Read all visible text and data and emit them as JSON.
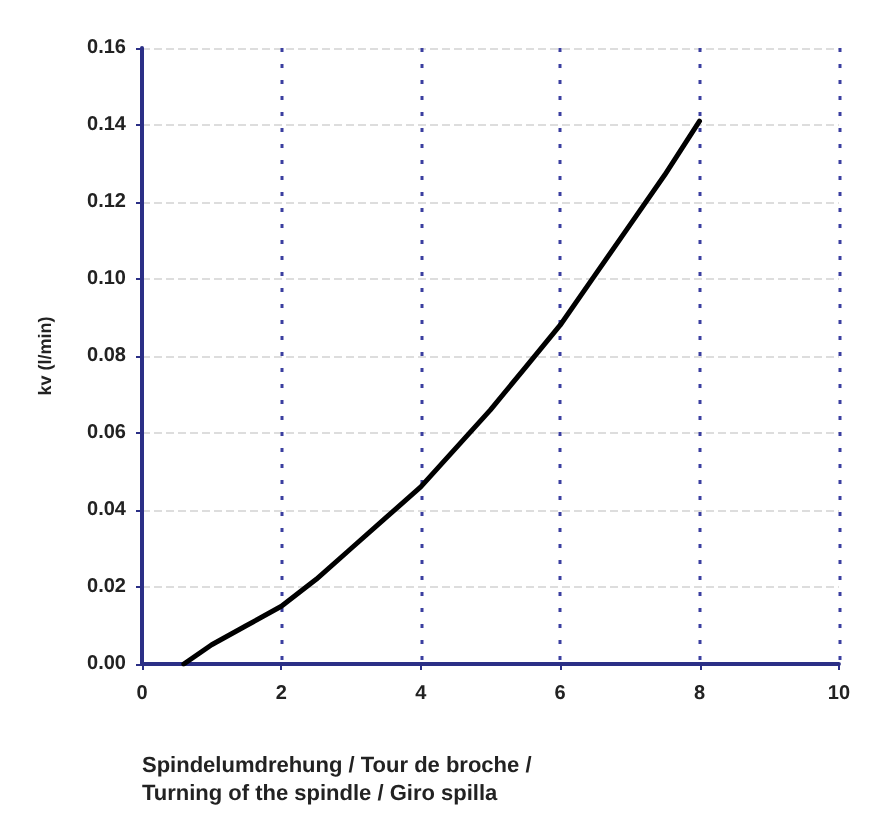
{
  "chart_data": {
    "type": "line",
    "xlabel": "Spindelumdrehung / Tour de broche /\nTurning of the spindle / Giro spilla",
    "ylabel": "kv (l/min)",
    "x": [
      0.6,
      1,
      1.5,
      2,
      2.5,
      3,
      3.5,
      4,
      4.5,
      5,
      5.5,
      6,
      6.5,
      7,
      7.5,
      8
    ],
    "series": [
      {
        "color": "#000000",
        "values": [
          0,
          0.005,
          0.01,
          0.015,
          0.022,
          0.03,
          0.038,
          0.046,
          0.056,
          0.066,
          0.077,
          0.088,
          0.101,
          0.114,
          0.127,
          0.141
        ]
      }
    ],
    "xlim": [
      0,
      10
    ],
    "xticks": [
      0,
      2,
      4,
      6,
      8,
      10
    ],
    "ylim": [
      0,
      0.16
    ],
    "yticks": [
      {
        "value": 0,
        "label": "0.00"
      },
      {
        "value": 0.02,
        "label": "0.02"
      },
      {
        "value": 0.04,
        "label": "0.04"
      },
      {
        "value": 0.06,
        "label": "0.06"
      },
      {
        "value": 0.08,
        "label": "0.08"
      },
      {
        "value": 0.1,
        "label": "0.10"
      },
      {
        "value": 0.12,
        "label": "0.12"
      },
      {
        "value": 0.14,
        "label": "0.14"
      },
      {
        "value": 0.16,
        "label": "0.16"
      }
    ],
    "grid": true,
    "marker": "none",
    "line_style": "solid"
  }
}
